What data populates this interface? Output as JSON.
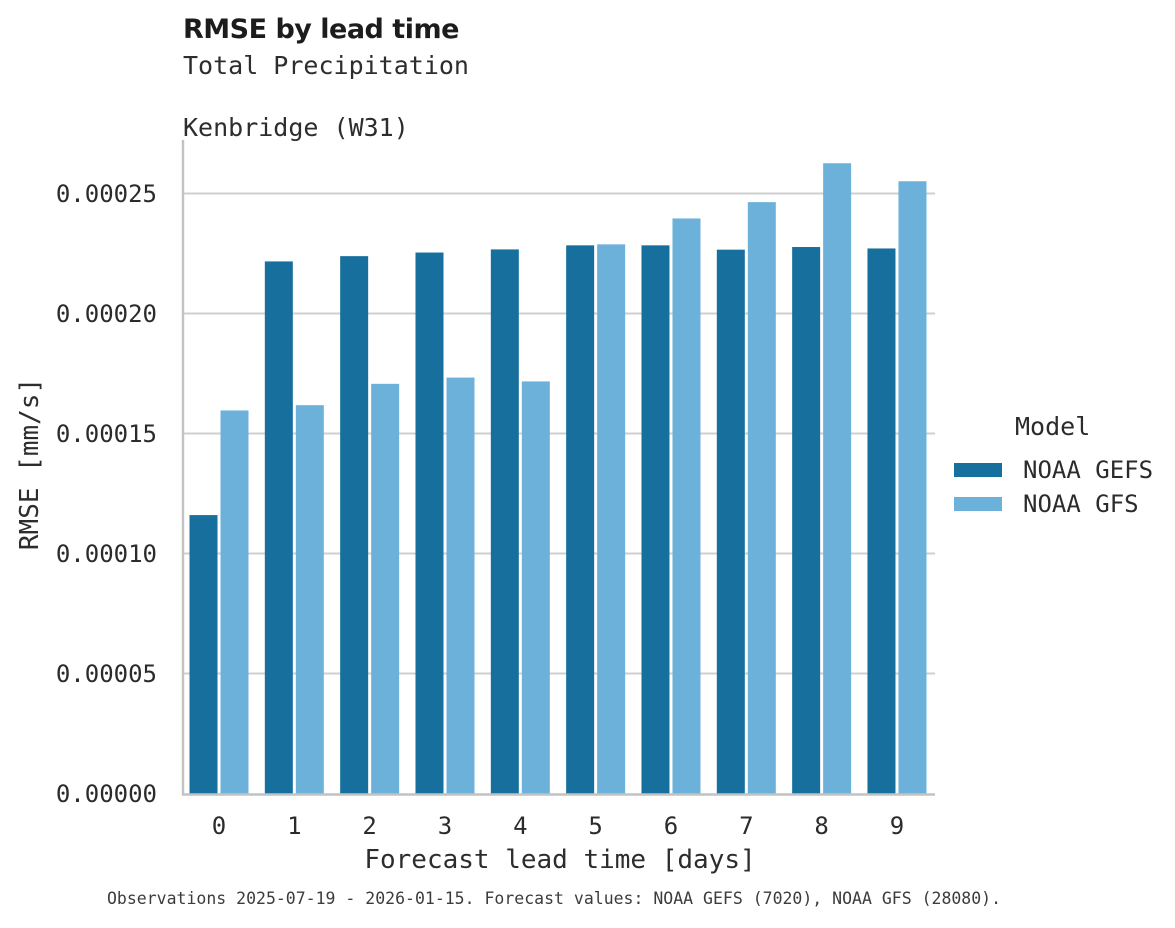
{
  "chart_data": {
    "type": "bar",
    "title": "RMSE by lead time",
    "subtitle": [
      "Total Precipitation",
      "Kenbridge (W31)"
    ],
    "xlabel": "Forecast lead time [days]",
    "ylabel": "RMSE [mm/s]",
    "categories": [
      "0",
      "1",
      "2",
      "3",
      "4",
      "5",
      "6",
      "7",
      "8",
      "9"
    ],
    "series": [
      {
        "name": "NOAA GEFS",
        "color": "#176f9d",
        "values": [
          0.000116,
          0.0002217,
          0.0002239,
          0.0002254,
          0.0002267,
          0.0002284,
          0.0002284,
          0.0002266,
          0.0002277,
          0.0002271
        ]
      },
      {
        "name": "NOAA GFS",
        "color": "#6cb1d9",
        "values": [
          0.0001596,
          0.0001618,
          0.0001707,
          0.0001733,
          0.0001717,
          0.0002288,
          0.0002396,
          0.0002464,
          0.0002626,
          0.0002551
        ]
      }
    ],
    "ylim": [
      0,
      0.0002723
    ],
    "y_ticks": {
      "values": [
        0,
        5e-05,
        0.0001,
        0.00015,
        0.0002,
        0.00025
      ],
      "labels": [
        "0.00000",
        "0.00005",
        "0.00010",
        "0.00015",
        "0.00020",
        "0.00025"
      ]
    },
    "grid": "horizontal",
    "legend": {
      "title": "Model",
      "position": "right"
    }
  },
  "footer": {
    "caption": "Observations 2025-07-19 - 2026-01-15. Forecast values: NOAA GEFS (7020), NOAA GFS (28080)."
  },
  "colors": {
    "gridline": "#cfcfcf",
    "spine": "#c2c2c2",
    "background": "#ffffff"
  }
}
